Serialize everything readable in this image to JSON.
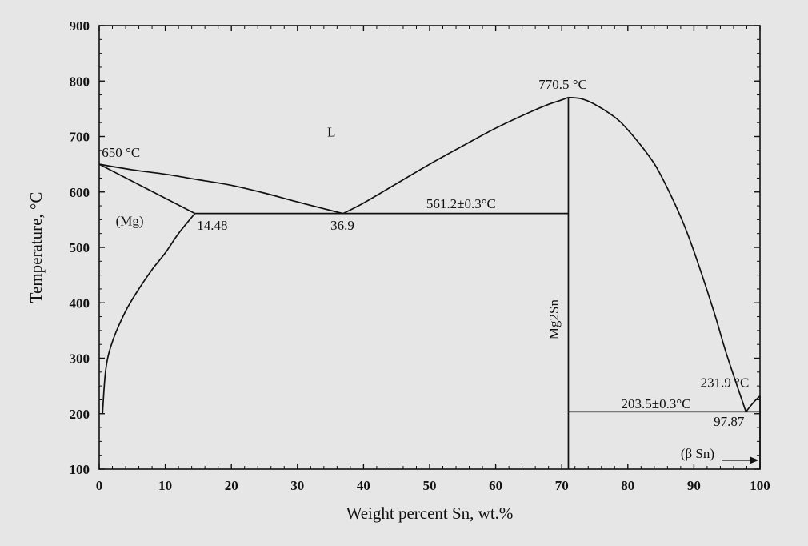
{
  "chart_data": {
    "type": "line",
    "xlabel": "Weight percent Sn, wt.%",
    "ylabel": "Temperature, °C",
    "xlim": [
      0,
      100
    ],
    "ylim": [
      100,
      900
    ],
    "xticks": [
      0,
      10,
      20,
      30,
      40,
      50,
      60,
      70,
      80,
      90,
      100
    ],
    "yticks": [
      100,
      200,
      300,
      400,
      500,
      600,
      700,
      800,
      900
    ],
    "grid": false,
    "series": [
      {
        "id": "liquidus-mg-side",
        "x": [
          0,
          5,
          10,
          15,
          20,
          25,
          30,
          36.9
        ],
        "y": [
          650,
          640,
          632,
          622,
          612,
          598,
          582,
          561
        ]
      },
      {
        "id": "liquidus-mg2sn-left",
        "x": [
          36.9,
          40,
          45,
          50,
          55,
          60,
          65,
          68,
          70,
          71
        ],
        "y": [
          561,
          580,
          615,
          650,
          683,
          715,
          743,
          758,
          766,
          770.5
        ]
      },
      {
        "id": "liquidus-mg2sn-right",
        "x": [
          71,
          73,
          75,
          78,
          80,
          83,
          85,
          88,
          90,
          93,
          95,
          97.87
        ],
        "y": [
          770.5,
          768,
          758,
          735,
          712,
          668,
          630,
          555,
          493,
          385,
          305,
          203.5
        ]
      },
      {
        "id": "liquidus-sn-side",
        "x": [
          97.87,
          99,
          100
        ],
        "y": [
          203.5,
          220,
          231.9
        ]
      },
      {
        "id": "solidus-mg",
        "x": [
          0,
          14.48
        ],
        "y": [
          650,
          561.2
        ]
      },
      {
        "id": "solvus-mg",
        "x": [
          0.5,
          1,
          2,
          4,
          6,
          8,
          10,
          12,
          14.48
        ],
        "y": [
          200,
          280,
          330,
          385,
          425,
          460,
          490,
          525,
          561.2
        ]
      },
      {
        "id": "eutectic-1",
        "x": [
          14.48,
          71
        ],
        "y": [
          561.2,
          561.2
        ]
      },
      {
        "id": "eutectic-2",
        "x": [
          71,
          100
        ],
        "y": [
          203.5,
          203.5
        ]
      },
      {
        "id": "mg2sn-line",
        "x": [
          71,
          71
        ],
        "y": [
          100,
          770.5
        ]
      },
      {
        "id": "sn-side-vertical",
        "x": [
          100,
          100
        ],
        "y": [
          100,
          231.9
        ]
      }
    ],
    "annotations": [
      {
        "text": "650 °C",
        "x": 0.4,
        "y": 663
      },
      {
        "text": "L",
        "x": 34.5,
        "y": 700
      },
      {
        "text": "770.5 °C",
        "x": 66.5,
        "y": 786
      },
      {
        "text": "561.2±0.3°C",
        "x": 49.5,
        "y": 571
      },
      {
        "text": "(Mg)",
        "x": 2.5,
        "y": 540
      },
      {
        "text": "14.48",
        "x": 14.8,
        "y": 532
      },
      {
        "text": "36.9",
        "x": 35,
        "y": 532
      },
      {
        "text": "231.9 °C",
        "x": 91,
        "y": 248
      },
      {
        "text": "203.5±0.3°C",
        "x": 79,
        "y": 210
      },
      {
        "text": "97.87",
        "x": 93,
        "y": 178
      },
      {
        "text": "(β Sn)",
        "x": 88,
        "y": 120
      }
    ],
    "phase_label": "Mg2Sn",
    "phase_label_x": 69.5,
    "phase_label_y": 370
  }
}
